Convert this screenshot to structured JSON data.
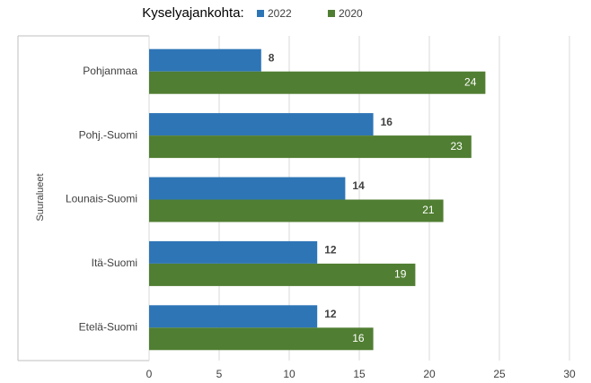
{
  "chart_data": {
    "type": "barh",
    "legend_title": "Kyselyajankohta:",
    "y_label": "Suuralueet",
    "categories": [
      "Pohjanmaa",
      "Pohj.-Suomi",
      "Lounais-Suomi",
      "Itä-Suomi",
      "Etelä-Suomi"
    ],
    "series": [
      {
        "name": "2022",
        "color": "#2e75b6",
        "values": [
          8,
          16,
          14,
          12,
          12
        ]
      },
      {
        "name": "2020",
        "color": "#507e32",
        "values": [
          24,
          23,
          21,
          19,
          16
        ]
      }
    ],
    "xlim": [
      0,
      30
    ],
    "xticks": [
      0,
      5,
      10,
      15,
      20,
      25,
      30
    ],
    "grid": true
  }
}
